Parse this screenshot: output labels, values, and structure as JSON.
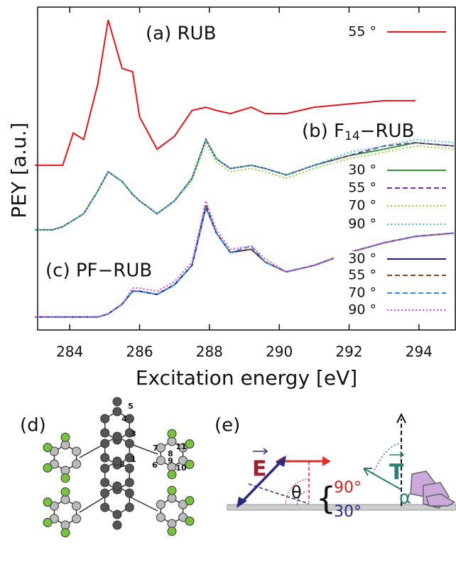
{
  "chart_data": {
    "type": "line",
    "ylabel": "PEY [a.u.]",
    "xlabel": "Excitation energy [eV]",
    "xlim": [
      283,
      295
    ],
    "xticks": [
      284,
      286,
      288,
      290,
      292,
      294
    ],
    "ylim": [
      0,
      1
    ],
    "annotations": [
      {
        "text": "(a) RUB"
      },
      {
        "parts": [
          "(b) F",
          "14",
          "−RUB"
        ]
      },
      {
        "text": "(c) PF−RUB"
      }
    ],
    "x": [
      283,
      283.5,
      283.8,
      284.1,
      284.4,
      284.8,
      285.1,
      285.5,
      285.8,
      286,
      286.5,
      287,
      287.5,
      287.9,
      288.2,
      288.6,
      289.2,
      289.6,
      290.2,
      291,
      292,
      293,
      293.9,
      295
    ],
    "series": [
      {
        "name": "55 °",
        "color": "#e8141b",
        "dash": "solid",
        "values": [
          0.51,
          0.51,
          0.51,
          0.61,
          0.59,
          0.76,
          0.96,
          0.81,
          0.8,
          0.66,
          0.56,
          0.6,
          0.68,
          0.69,
          0.68,
          0.67,
          0.69,
          0.67,
          0.67,
          0.69,
          0.7,
          0.71,
          0.71,
          null
        ]
      },
      {
        "name": "30 °",
        "color": "#2e9a2e",
        "dash": "solid",
        "values": [
          0.31,
          0.31,
          0.32,
          0.34,
          0.36,
          0.43,
          0.49,
          0.46,
          0.42,
          0.4,
          0.36,
          0.4,
          0.47,
          0.59,
          0.53,
          0.5,
          0.51,
          0.5,
          0.48,
          0.51,
          0.54,
          0.56,
          0.58,
          0.57
        ]
      },
      {
        "name": "55 °",
        "color": "#7030a0",
        "dash": "dashed",
        "values": [
          0.31,
          0.31,
          0.32,
          0.34,
          0.36,
          0.43,
          0.49,
          0.46,
          0.42,
          0.4,
          0.36,
          0.4,
          0.47,
          0.59,
          0.53,
          0.5,
          0.51,
          0.5,
          0.48,
          0.51,
          0.54,
          0.57,
          0.58,
          0.57
        ]
      },
      {
        "name": "70 °",
        "color": "#9acd32",
        "dash": "dotted",
        "values": [
          0.31,
          0.31,
          0.32,
          0.34,
          0.36,
          0.43,
          0.49,
          0.46,
          0.42,
          0.4,
          0.36,
          0.4,
          0.46,
          0.58,
          0.52,
          0.49,
          0.5,
          0.49,
          0.47,
          0.5,
          0.53,
          0.55,
          0.57,
          0.56
        ]
      },
      {
        "name": "90 °",
        "color": "#40c0e0",
        "dash": "dotted",
        "values": [
          0.31,
          0.31,
          0.32,
          0.34,
          0.36,
          0.43,
          0.49,
          0.46,
          0.42,
          0.4,
          0.36,
          0.4,
          0.47,
          0.59,
          0.53,
          0.5,
          0.51,
          0.5,
          0.48,
          0.51,
          0.55,
          0.57,
          0.59,
          0.58
        ]
      },
      {
        "name": "30 °",
        "color": "#1a1a80",
        "dash": "solid",
        "values": [
          0.04,
          0.04,
          0.04,
          0.04,
          0.04,
          0.04,
          0.05,
          0.08,
          0.12,
          0.12,
          0.11,
          0.14,
          0.2,
          0.38,
          0.3,
          0.24,
          0.25,
          0.21,
          0.18,
          0.2,
          0.24,
          0.27,
          0.29,
          0.3
        ]
      },
      {
        "name": "55 °",
        "color": "#8b4513",
        "dash": "dashed",
        "values": [
          0.04,
          0.04,
          0.04,
          0.04,
          0.04,
          0.04,
          0.05,
          0.08,
          0.12,
          0.12,
          0.11,
          0.14,
          0.2,
          0.39,
          0.3,
          0.24,
          0.25,
          0.21,
          0.18,
          0.2,
          0.24,
          0.27,
          0.29,
          0.3
        ]
      },
      {
        "name": "70 °",
        "color": "#3090e0",
        "dash": "dashed",
        "values": [
          0.04,
          0.04,
          0.04,
          0.04,
          0.04,
          0.04,
          0.05,
          0.08,
          0.12,
          0.12,
          0.11,
          0.14,
          0.2,
          0.38,
          0.3,
          0.24,
          0.26,
          0.21,
          0.18,
          0.2,
          0.24,
          0.27,
          0.29,
          0.3
        ]
      },
      {
        "name": "90 °",
        "color": "#e040e0",
        "dash": "dotted",
        "values": [
          0.04,
          0.04,
          0.04,
          0.04,
          0.04,
          0.04,
          0.05,
          0.08,
          0.13,
          0.13,
          0.12,
          0.15,
          0.21,
          0.4,
          0.31,
          0.25,
          0.26,
          0.22,
          0.18,
          0.2,
          0.24,
          0.27,
          0.29,
          0.3
        ]
      }
    ]
  },
  "panels": {
    "d": {
      "label": "(d)",
      "atom_numbers": [
        "1",
        "2",
        "3",
        "4",
        "5",
        "6",
        "7",
        "8",
        "9",
        "10",
        "11"
      ]
    },
    "e": {
      "label": "(e)",
      "field": "E",
      "transition": "T",
      "alpha": "α",
      "theta": "θ",
      "angles": [
        "90°",
        "30°"
      ]
    }
  }
}
